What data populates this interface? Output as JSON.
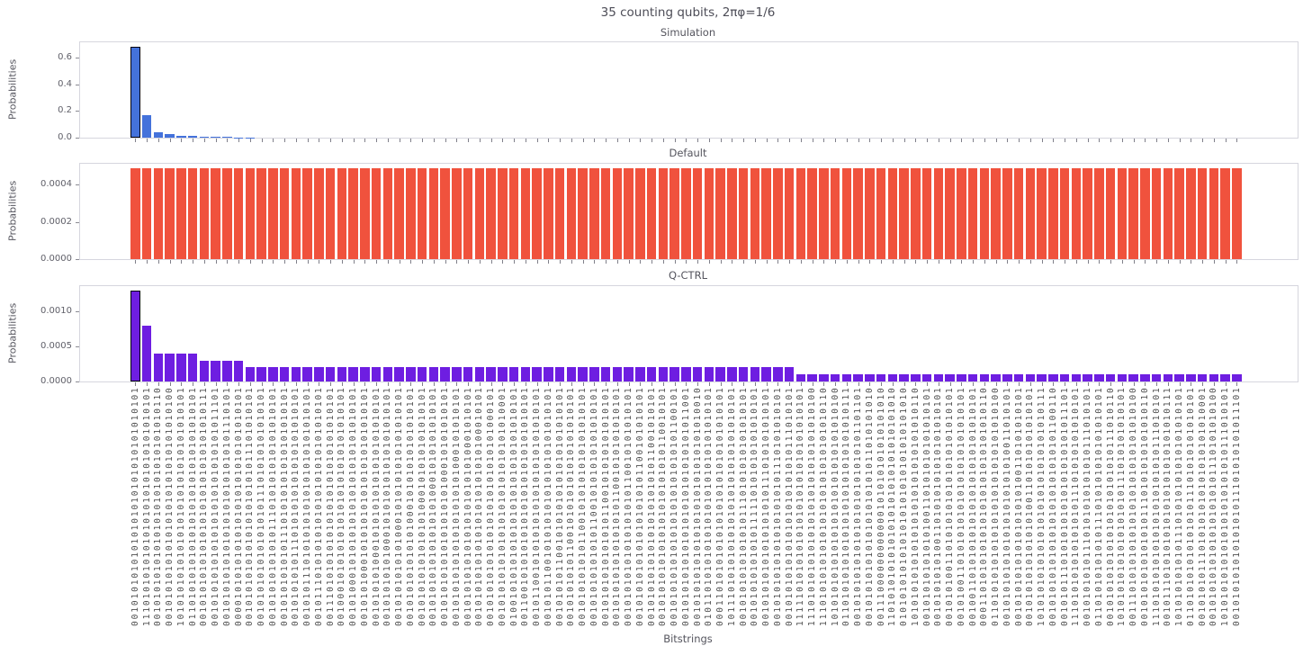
{
  "figure": {
    "title": "35 counting qubits, 2πφ=1/6",
    "xlabel": "Bitstrings",
    "ylabel": "Probabilities"
  },
  "chart_data": {
    "type": "bar",
    "title": "35 counting qubits, 2πφ=1/6",
    "xlabel": "Bitstrings",
    "ylabel": "Probabilities",
    "n_bars": 97,
    "legend": "none",
    "grid": false,
    "panels": [
      {
        "title": "Simulation",
        "color": "#4472DB",
        "highlight_index": 0,
        "highlight_edge_color": "#05050f",
        "ylim": [
          0,
          0.715
        ],
        "ytick_labels": [
          "0.0",
          "0.2",
          "0.4",
          "0.6"
        ],
        "ytick_values": [
          0.0,
          0.2,
          0.4,
          0.6
        ],
        "values_rle": [
          [
            0.684,
            1
          ],
          [
            0.171,
            1
          ],
          [
            0.043,
            1
          ],
          [
            0.027,
            1
          ],
          [
            0.014,
            1
          ],
          [
            0.011,
            1
          ],
          [
            0.007,
            1
          ],
          [
            0.0055,
            1
          ],
          [
            0.004,
            1
          ],
          [
            0.0034,
            1
          ],
          [
            0.0027,
            1
          ],
          [
            0.0023,
            1
          ],
          [
            0.0019,
            1
          ],
          [
            0.0016,
            1
          ],
          [
            0.0013,
            1
          ],
          [
            0.0011,
            1
          ],
          [
            0.0008,
            4
          ],
          [
            0.0003,
            77
          ]
        ]
      },
      {
        "title": "Default",
        "color": "#F0523D",
        "highlight_index": null,
        "highlight_edge_color": null,
        "ylim": [
          0,
          0.000512
        ],
        "ytick_labels": [
          "0.0000",
          "0.0002",
          "0.0004"
        ],
        "ytick_values": [
          0.0,
          0.0002,
          0.0004
        ],
        "values_rle": [
          [
            0.000488,
            97
          ]
        ]
      },
      {
        "title": "Q-CTRL",
        "color": "#6E1EE1",
        "highlight_index": 0,
        "highlight_edge_color": "#05050f",
        "ylim": [
          0,
          0.001365
        ],
        "ytick_labels": [
          "0.0000",
          "0.0005",
          "0.0010"
        ],
        "ytick_values": [
          0.0,
          0.0005,
          0.001
        ],
        "values_rle": [
          [
            0.0013,
            1
          ],
          [
            0.0008,
            1
          ],
          [
            0.0004,
            4
          ],
          [
            0.0003,
            4
          ],
          [
            0.0002,
            48
          ],
          [
            0.0001,
            39
          ]
        ]
      }
    ],
    "categories": [
      "00101010101010101010101010101010101",
      "11101010101010101010101010101010101",
      "00101010101010101010101010101010110",
      "00101010101010101010101010101010100",
      "10101010101010101010101010101010101",
      "01101010101010101010101010101010101",
      "00101010101010101010101010101010111",
      "00101010101010101010101010101011101",
      "00101010101010101010101010101110101",
      "00001010101010101010101010101010101",
      "00101010101010101010101011101010101",
      "00101010101010101011101010101010101",
      "00101010101010111010101010101010101",
      "00101010101011101010101010101010101",
      "00101010101110101010101010101010101",
      "00101011101010101010101010101010101",
      "00101110101010101010101010101010101",
      "00111010101010101010101010101010101",
      "00100010101010101010101010101010101",
      "00101000101010101010101010101010101",
      "00101010001010101010101010101010101",
      "00101010100010101010101010101010101",
      "00101010101000101010101010101010101",
      "00101010101010001010101010101010101",
      "00101010101010100010101010101010101",
      "00101010101010101000101010101010101",
      "00101010101010101010001010101010101",
      "00101010101010101010100010101010101",
      "00101010101010101010101000101010101",
      "00101010101010101010101010001010101",
      "00101010101010101010101010100010101",
      "00101010101010101010101010101000101",
      "00101010101010101010101010101010001",
      "01001010101010101010101010101010101",
      "00110010101010101010101010101010101",
      "00101100101010101010101010101010101",
      "00101011001010101010101010101010101",
      "00101010110010101010101010101010101",
      "00101010101100101010101010101010101",
      "00101010101011001010101010101010101",
      "00101010101010110010101010101010101",
      "00101010101010101100101010101010101",
      "00101010101010101011001010101010101",
      "00101010101010101010110010101010101",
      "00101010101010101010101100101010101",
      "00101010101010101010101011001010101",
      "00101010101010101010101010110010101",
      "00101010101010101010101010101100101",
      "00101010101010101010101010101011001",
      "00101010101010101010101010101010010",
      "01011010101010101010101010101010101",
      "00011010101010101010101010101010101",
      "10111010101010101010101010101010101",
      "00101010101010101110101010101010101",
      "00101010101010111110101010101010101",
      "00101010101010101010111010101010101",
      "00101010101010101010101110101010101",
      "00101010101010101010101010111010101",
      "11111010101010101010101010101010101",
      "11101010101010101010101010101010100",
      "11101010101010101010101010101010110",
      "10101010101010101010101010101010100",
      "01101010101010101010101010101010111",
      "00101010101010101010101010101101101",
      "00101010101010101010101011010101010",
      "00111000000000000101010101010101010",
      "11010101010101010101010101010101010",
      "01010101010101010101010101010101010",
      "10101010101010101010101010101010110",
      "00101010101010100110101010101010101",
      "00101010101001101010101010101010101",
      "00101010011010101010101010101010101",
      "00101001101010101010101010101010101",
      "00100110101010101010101010101010101",
      "00011010101010101010101010101010110",
      "01101010101010101010101010101010100",
      "00101010101010101010101010011010101",
      "00101010101010101010100110101010101",
      "00101010101010101001101010101010101",
      "10101010101010101010101010101010111",
      "00101010101010101010101010101100110",
      "00101011101010101010101010101011101",
      "11101010101010101011101010101010101",
      "00101010101110101010101010111010101",
      "01101010101010111010101010101010101",
      "00101010101010101010101010111010110",
      "10101010101010101010111010101010101",
      "00111010101010101010101010101010100",
      "00101010101010101110101010101010110",
      "11101010101010101010101010111010101",
      "00101110101010101010101010101010111",
      "10101010101011101010101010101010101",
      "01101010101010101011101010101010101",
      "00101010111010101010101010101010001",
      "00101010101010101010101110101010100",
      "10101010101010101010101010111010101",
      "00101010101010101011101010101011101"
    ]
  }
}
